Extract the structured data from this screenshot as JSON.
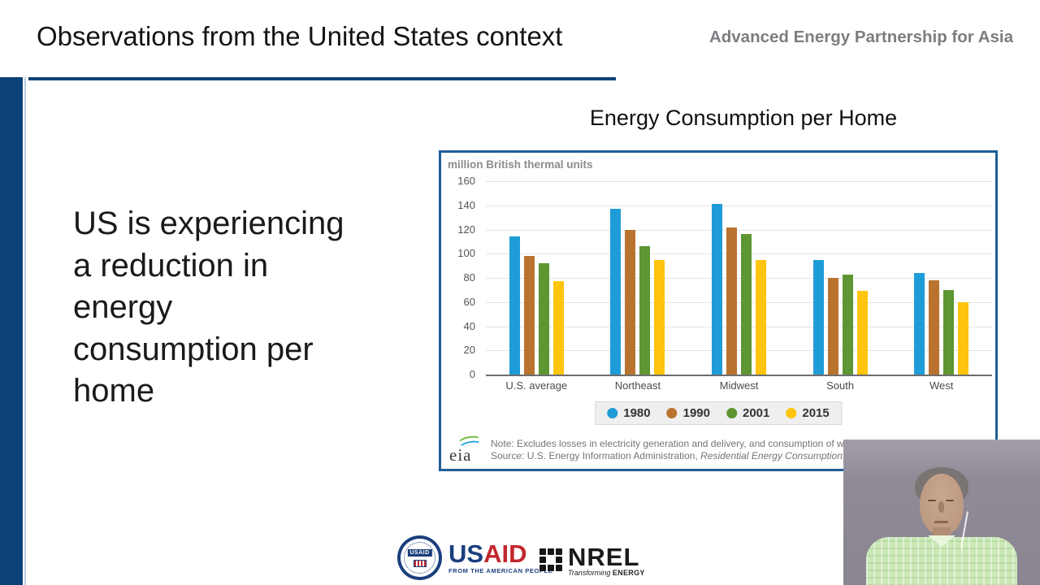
{
  "slide": {
    "title": "Observations from the United States context",
    "program": "Advanced Energy Partnership for Asia",
    "body_lines": [
      "US is experiencing",
      "a reduction in",
      "energy",
      "consumption per",
      "home"
    ],
    "chart_title": "Energy Consumption per Home"
  },
  "chart_data": {
    "type": "bar",
    "title": "Energy Consumption per Home",
    "unit_label": "million British thermal units",
    "categories": [
      "U.S. average",
      "Northeast",
      "Midwest",
      "South",
      "West"
    ],
    "series": [
      {
        "name": "1980",
        "color": "#1e9cd7",
        "values": [
          114,
          137,
          141,
          95,
          84
        ]
      },
      {
        "name": "1990",
        "color": "#b9732f",
        "values": [
          98,
          120,
          122,
          80,
          78
        ]
      },
      {
        "name": "2001",
        "color": "#5d9632",
        "values": [
          92,
          106,
          116,
          83,
          70
        ]
      },
      {
        "name": "2015",
        "color": "#fec40e",
        "values": [
          77,
          95,
          95,
          69,
          60
        ]
      }
    ],
    "ylim": [
      0,
      160
    ],
    "yticks": [
      160,
      140,
      120,
      100,
      80,
      60,
      40,
      20,
      0
    ],
    "grid": true,
    "legend_position": "bottom",
    "note": "Note: Excludes losses in electricity generation and delivery, and consumption of w",
    "source_prefix": "Source: U.S. Energy Information Administration, ",
    "source_italic": "Residential Energy Consumption",
    "logo": "eia"
  },
  "footer": {
    "usaid": {
      "seal_text": "USAID",
      "wordmark_us": "US",
      "wordmark_aid": "AID",
      "tagline": "FROM THE AMERICAN PEOPLE"
    },
    "nrel": {
      "wordmark": "NREL",
      "tagline_italic": "Transforming",
      "tagline_bold": "ENERGY"
    }
  },
  "colors": {
    "accent_navy": "#0a4179",
    "chart_border": "#205d97",
    "title_text": "#141414",
    "program_text": "#7b7d80"
  }
}
